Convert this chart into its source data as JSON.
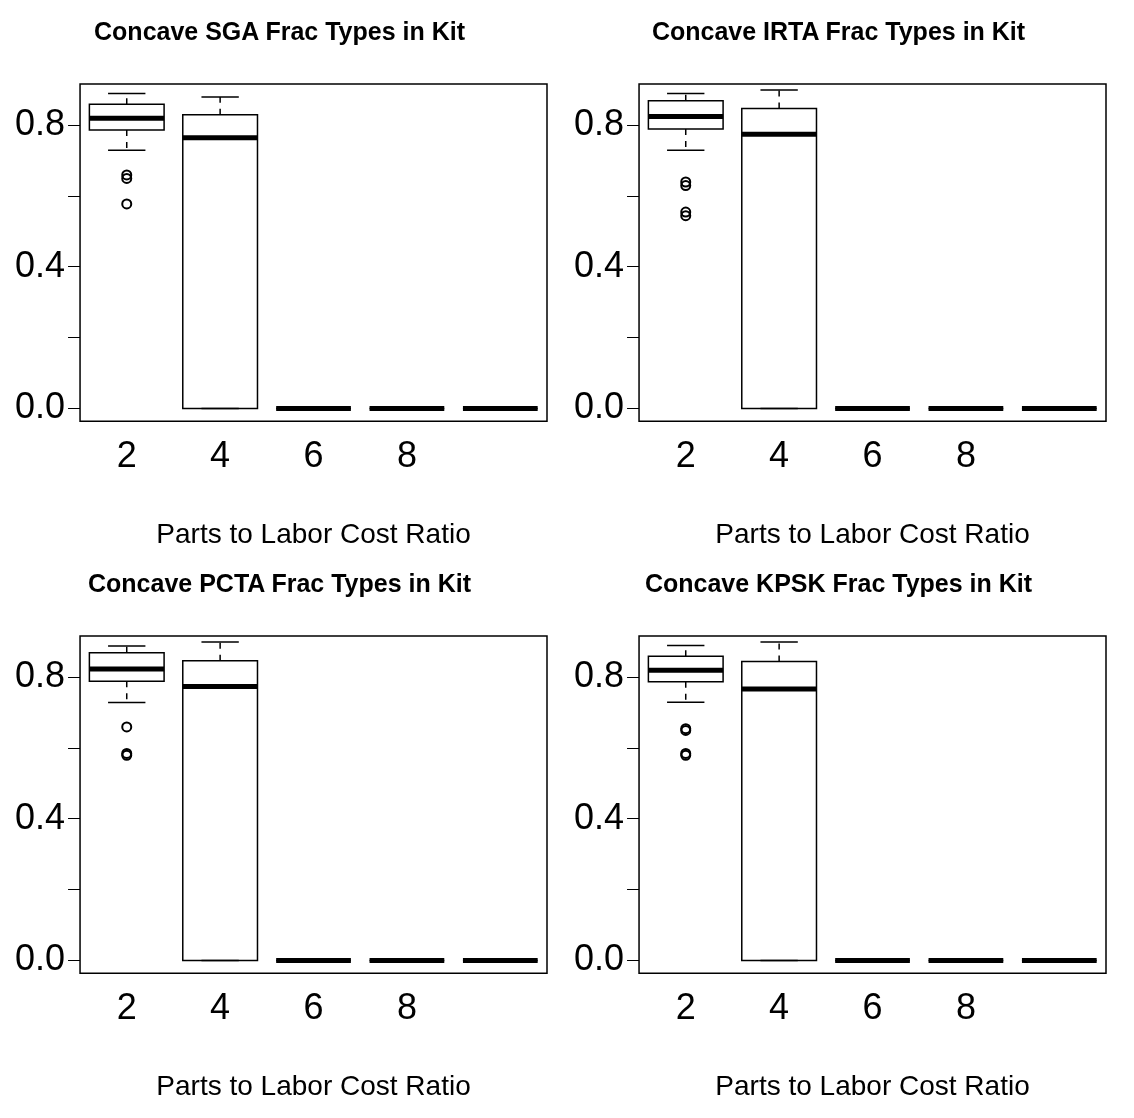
{
  "chart_data": [
    {
      "type": "box",
      "title": "Concave SGA Frac Types in Kit",
      "xlabel": "Parts to Labor Cost Ratio",
      "categories": [
        "2",
        "4",
        "6",
        "8",
        null
      ],
      "ylim": [
        -0.036,
        0.917
      ],
      "yticks": [
        {
          "value": 0,
          "label": "0.0"
        },
        {
          "value": 0.2,
          "label": null
        },
        {
          "value": 0.4,
          "label": "0.4"
        },
        {
          "value": 0.6,
          "label": null
        },
        {
          "value": 0.8,
          "label": "0.8"
        }
      ],
      "boxes": [
        {
          "low": 0.73,
          "q1": 0.787,
          "median": 0.82,
          "q3": 0.86,
          "high": 0.89,
          "outliers": [
            0.66,
            0.65,
            0.578
          ]
        },
        {
          "low": 0,
          "q1": 0,
          "median": 0.765,
          "q3": 0.83,
          "high": 0.88
        },
        {
          "low": 0,
          "q1": 0,
          "median": 0,
          "q3": 0,
          "high": 0
        },
        {
          "low": 0,
          "q1": 0,
          "median": 0,
          "q3": 0,
          "high": 0
        },
        {
          "low": 0,
          "q1": 0,
          "median": 0,
          "q3": 0,
          "high": 0
        }
      ]
    },
    {
      "type": "box",
      "title": "Concave IRTA Frac Types in Kit",
      "xlabel": "Parts to Labor Cost Ratio",
      "categories": [
        "2",
        "4",
        "6",
        "8",
        null
      ],
      "ylim": [
        -0.036,
        0.917
      ],
      "yticks": [
        {
          "value": 0,
          "label": "0.0"
        },
        {
          "value": 0.2,
          "label": null
        },
        {
          "value": 0.4,
          "label": "0.4"
        },
        {
          "value": 0.6,
          "label": null
        },
        {
          "value": 0.8,
          "label": "0.8"
        }
      ],
      "boxes": [
        {
          "low": 0.73,
          "q1": 0.79,
          "median": 0.825,
          "q3": 0.87,
          "high": 0.89,
          "outliers": [
            0.64,
            0.63,
            0.555,
            0.545
          ]
        },
        {
          "low": 0,
          "q1": 0,
          "median": 0.775,
          "q3": 0.848,
          "high": 0.9
        },
        {
          "low": 0,
          "q1": 0,
          "median": 0,
          "q3": 0,
          "high": 0
        },
        {
          "low": 0,
          "q1": 0,
          "median": 0,
          "q3": 0,
          "high": 0
        },
        {
          "low": 0,
          "q1": 0,
          "median": 0,
          "q3": 0,
          "high": 0
        }
      ]
    },
    {
      "type": "box",
      "title": "Concave PCTA Frac Types in Kit",
      "xlabel": "Parts to Labor Cost Ratio",
      "categories": [
        "2",
        "4",
        "6",
        "8",
        null
      ],
      "ylim": [
        -0.036,
        0.917
      ],
      "yticks": [
        {
          "value": 0,
          "label": "0.0"
        },
        {
          "value": 0.2,
          "label": null
        },
        {
          "value": 0.4,
          "label": "0.4"
        },
        {
          "value": 0.6,
          "label": null
        },
        {
          "value": 0.8,
          "label": "0.8"
        }
      ],
      "boxes": [
        {
          "low": 0.729,
          "q1": 0.789,
          "median": 0.824,
          "q3": 0.87,
          "high": 0.889,
          "outliers": [
            0.66,
            0.585,
            0.58
          ]
        },
        {
          "low": 0,
          "q1": 0,
          "median": 0.774,
          "q3": 0.847,
          "high": 0.9
        },
        {
          "low": 0,
          "q1": 0,
          "median": 0,
          "q3": 0,
          "high": 0
        },
        {
          "low": 0,
          "q1": 0,
          "median": 0,
          "q3": 0,
          "high": 0
        },
        {
          "low": 0,
          "q1": 0,
          "median": 0,
          "q3": 0,
          "high": 0
        }
      ]
    },
    {
      "type": "box",
      "title": "Concave KPSK Frac Types in Kit",
      "xlabel": "Parts to Labor Cost Ratio",
      "categories": [
        "2",
        "4",
        "6",
        "8",
        null
      ],
      "ylim": [
        -0.036,
        0.917
      ],
      "yticks": [
        {
          "value": 0,
          "label": "0.0"
        },
        {
          "value": 0.2,
          "label": null
        },
        {
          "value": 0.4,
          "label": "0.4"
        },
        {
          "value": 0.6,
          "label": null
        },
        {
          "value": 0.8,
          "label": "0.8"
        }
      ],
      "boxes": [
        {
          "low": 0.73,
          "q1": 0.788,
          "median": 0.82,
          "q3": 0.86,
          "high": 0.89,
          "outliers": [
            0.655,
            0.65,
            0.585,
            0.58
          ]
        },
        {
          "low": 0,
          "q1": 0,
          "median": 0.767,
          "q3": 0.845,
          "high": 0.9
        },
        {
          "low": 0,
          "q1": 0,
          "median": 0,
          "q3": 0,
          "high": 0
        },
        {
          "low": 0,
          "q1": 0,
          "median": 0,
          "q3": 0,
          "high": 0
        },
        {
          "low": 0,
          "q1": 0,
          "median": 0,
          "q3": 0,
          "high": 0
        }
      ]
    }
  ]
}
